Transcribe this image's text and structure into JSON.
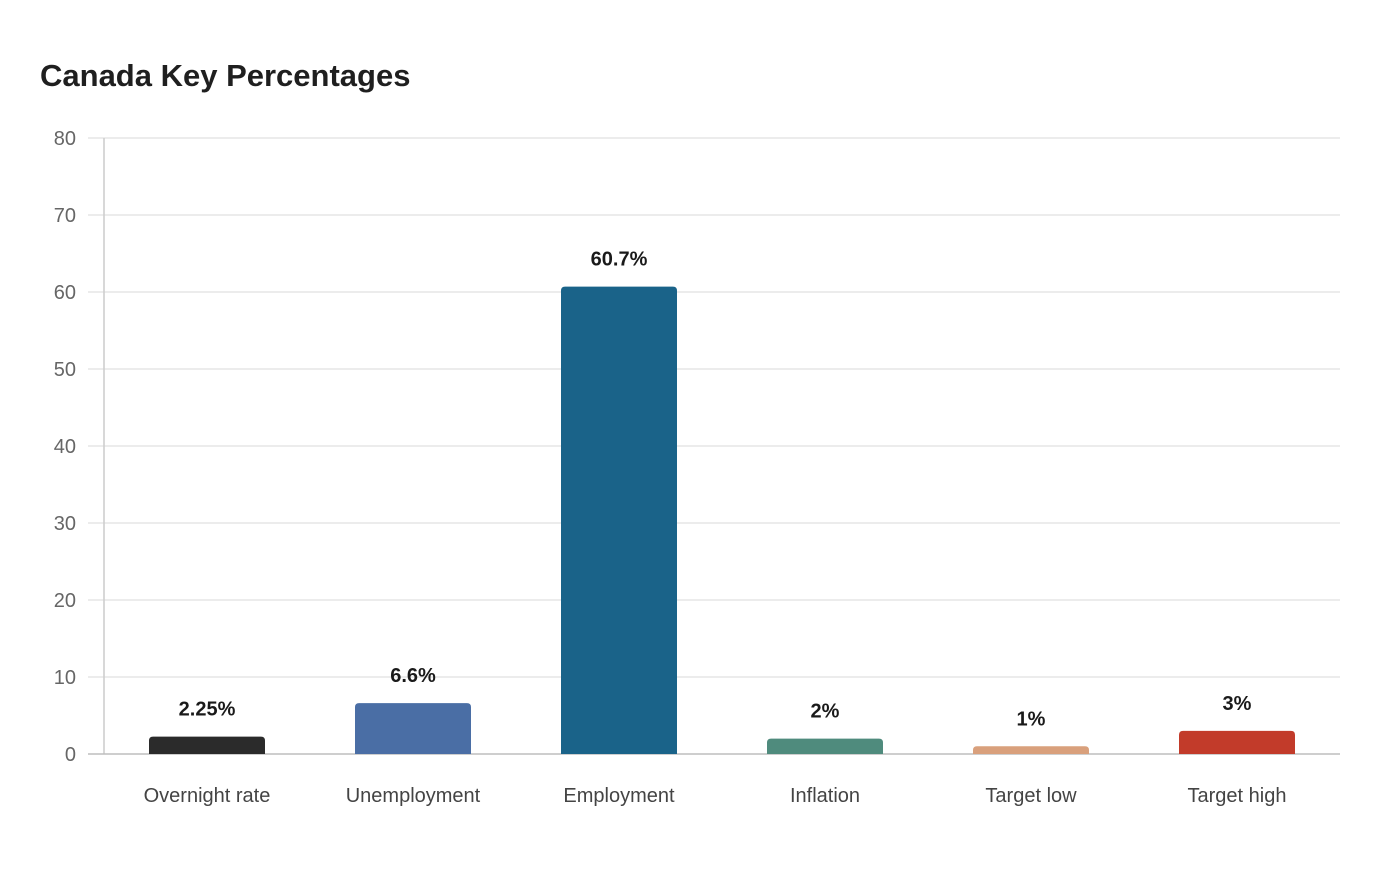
{
  "chart_data": {
    "type": "bar",
    "title": "Canada Key Percentages",
    "categories": [
      "Overnight rate",
      "Unemployment",
      "Employment",
      "Inflation",
      "Target low",
      "Target high"
    ],
    "values": [
      2.25,
      6.6,
      60.7,
      2,
      1,
      3
    ],
    "data_labels": [
      "2.25%",
      "6.6%",
      "60.7%",
      "2%",
      "1%",
      "3%"
    ],
    "colors": [
      "#2b2b2b",
      "#4a6ea5",
      "#1a6389",
      "#4f8b7d",
      "#d9a07c",
      "#c23b2a"
    ],
    "ylim": [
      0,
      80
    ],
    "yticks": [
      0,
      10,
      20,
      30,
      40,
      50,
      60,
      70,
      80
    ],
    "grid": true,
    "xlabel": "",
    "ylabel": ""
  }
}
